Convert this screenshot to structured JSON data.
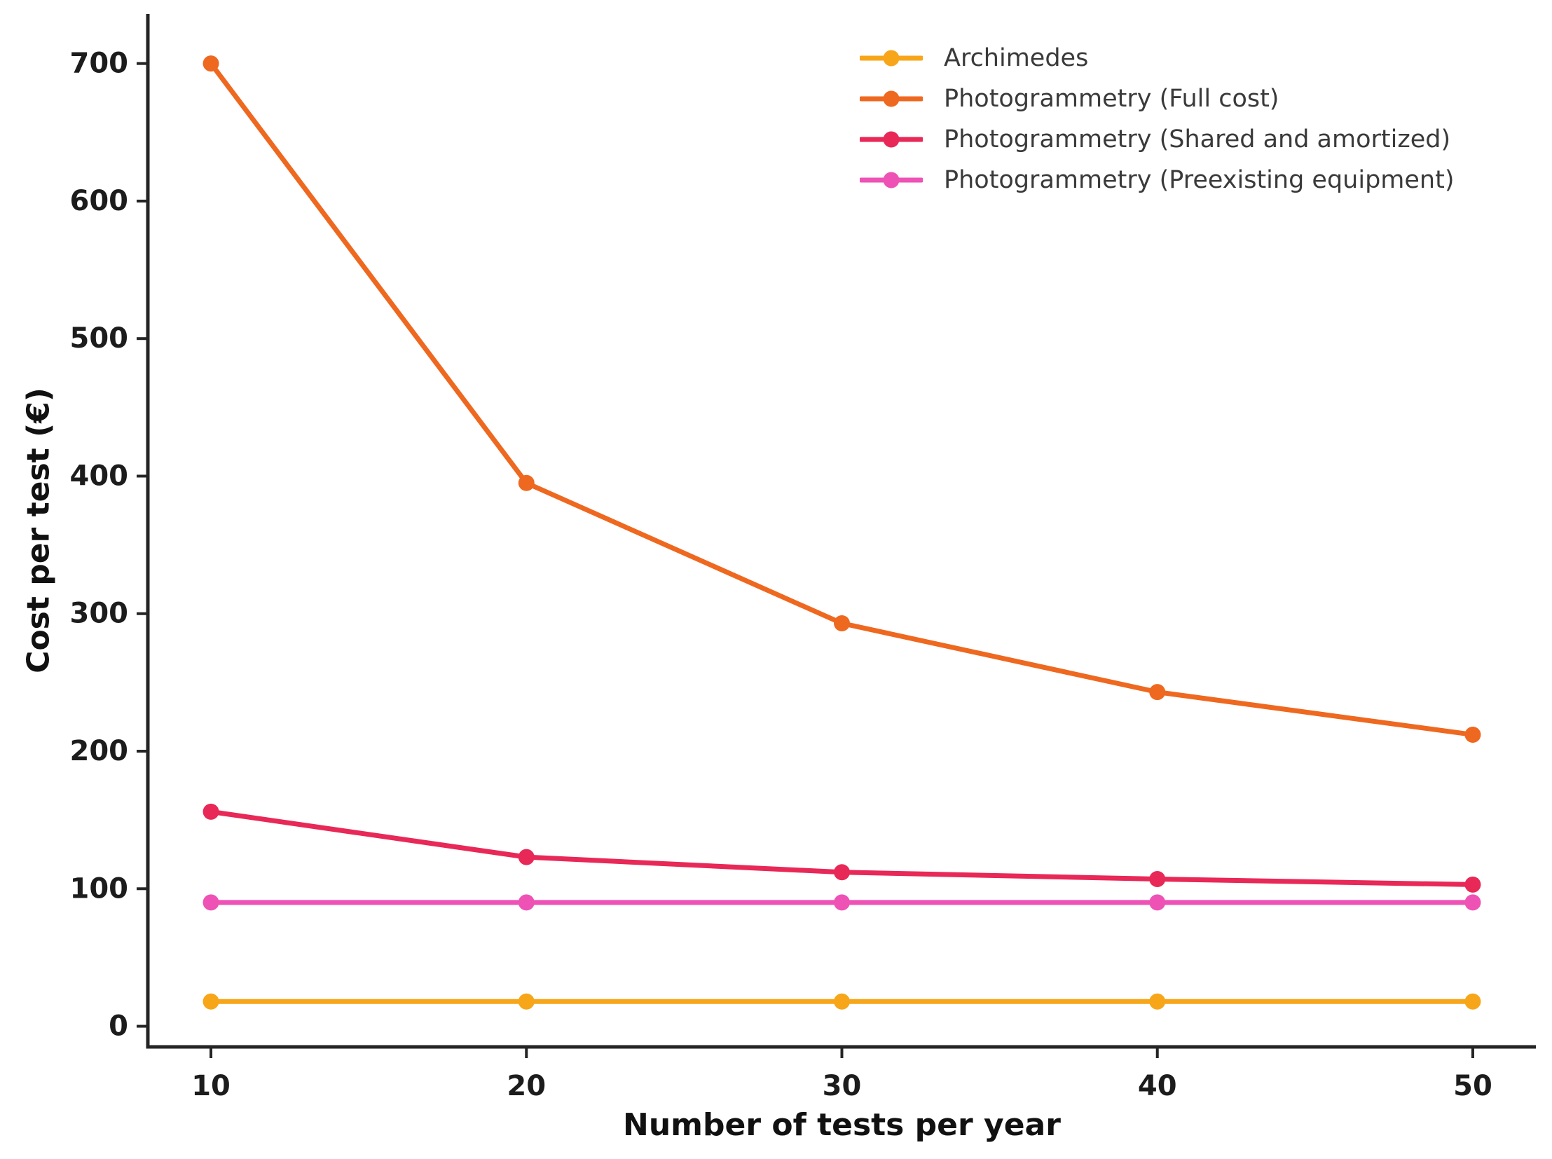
{
  "chart_data": {
    "type": "line",
    "x": [
      10,
      20,
      30,
      40,
      50
    ],
    "series": [
      {
        "name": "Archimedes",
        "color": "#F7A61A",
        "values": [
          18,
          18,
          18,
          18,
          18
        ]
      },
      {
        "name": "Photogrammetry (Full cost)",
        "color": "#EE6820",
        "values": [
          700,
          395,
          293,
          243,
          212
        ]
      },
      {
        "name": "Photogrammetry (Shared and amortized)",
        "color": "#E82857",
        "values": [
          156,
          123,
          112,
          107,
          103
        ]
      },
      {
        "name": "Photogrammetry (Preexisting equipment)",
        "color": "#EE52B5",
        "values": [
          90,
          90,
          90,
          90,
          90
        ]
      }
    ],
    "xlabel": "Number of tests per year",
    "ylabel": "Cost per test (€)",
    "xticks": [
      10,
      20,
      30,
      40,
      50
    ],
    "yticks": [
      0,
      100,
      200,
      300,
      400,
      500,
      600,
      700
    ],
    "xlim": [
      8,
      52
    ],
    "ylim": [
      -15,
      736
    ],
    "grid": false,
    "legend_position": "top-right",
    "axis_color": "#242424",
    "tick_label_color": "#1c1c1c",
    "legend_text_color": "#3a3a3a",
    "background": "#ffffff"
  }
}
